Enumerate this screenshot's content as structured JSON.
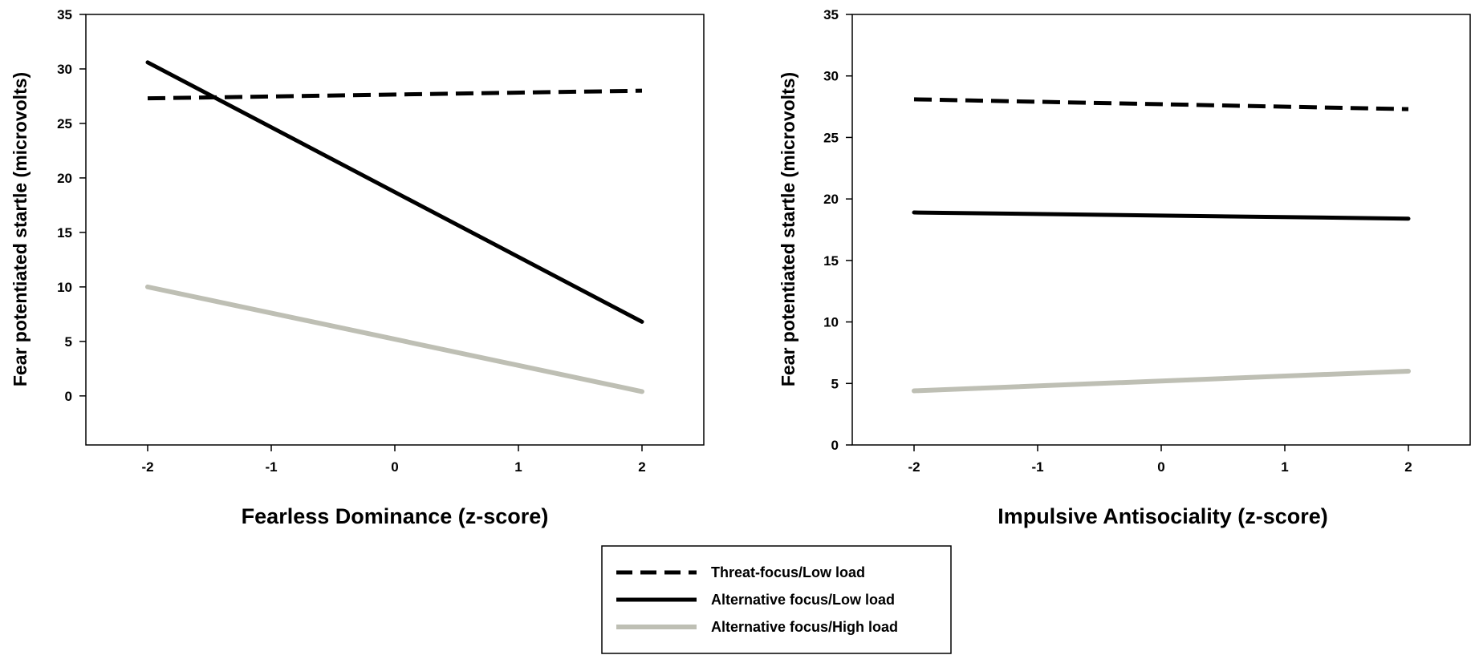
{
  "chart_data": [
    {
      "type": "line",
      "title": "",
      "xlabel": "Fearless Dominance (z-score)",
      "ylabel": "Fear potentiated startle (microvolts)",
      "x": [
        -2,
        2
      ],
      "xlim": [
        -2.5,
        2.5
      ],
      "ylim": [
        -4.5,
        35
      ],
      "xticks": [
        -2,
        -1,
        0,
        1,
        2
      ],
      "yticks": [
        0,
        5,
        10,
        15,
        20,
        25,
        30,
        35
      ],
      "grid": false,
      "series": [
        {
          "name": "Threat-focus/Low load",
          "values": [
            27.3,
            28.0
          ]
        },
        {
          "name": "Alternative focus/Low load",
          "values": [
            30.6,
            6.8
          ]
        },
        {
          "name": "Alternative focus/High load",
          "values": [
            10.0,
            0.4
          ]
        }
      ]
    },
    {
      "type": "line",
      "title": "",
      "xlabel": "Impulsive Antisociality (z-score)",
      "ylabel": "Fear potentiated startle (microvolts)",
      "x": [
        -2,
        2
      ],
      "xlim": [
        -2.5,
        2.5
      ],
      "ylim": [
        0,
        35
      ],
      "xticks": [
        -2,
        -1,
        0,
        1,
        2
      ],
      "yticks": [
        0,
        5,
        10,
        15,
        20,
        25,
        30,
        35
      ],
      "grid": false,
      "series": [
        {
          "name": "Threat-focus/Low load",
          "values": [
            28.1,
            27.3
          ]
        },
        {
          "name": "Alternative focus/Low load",
          "values": [
            18.9,
            18.4
          ]
        },
        {
          "name": "Alternative focus/High load",
          "values": [
            4.4,
            6.0
          ]
        }
      ]
    }
  ],
  "series_styles": [
    {
      "color": "#000000",
      "dash": "dashed"
    },
    {
      "color": "#000000",
      "dash": "solid"
    },
    {
      "color": "#bebfb4",
      "dash": "solid"
    }
  ],
  "legend": {
    "placement": "bottom-center",
    "entries": [
      "Threat-focus/Low load",
      "Alternative focus/Low load",
      "Alternative focus/High load"
    ]
  }
}
